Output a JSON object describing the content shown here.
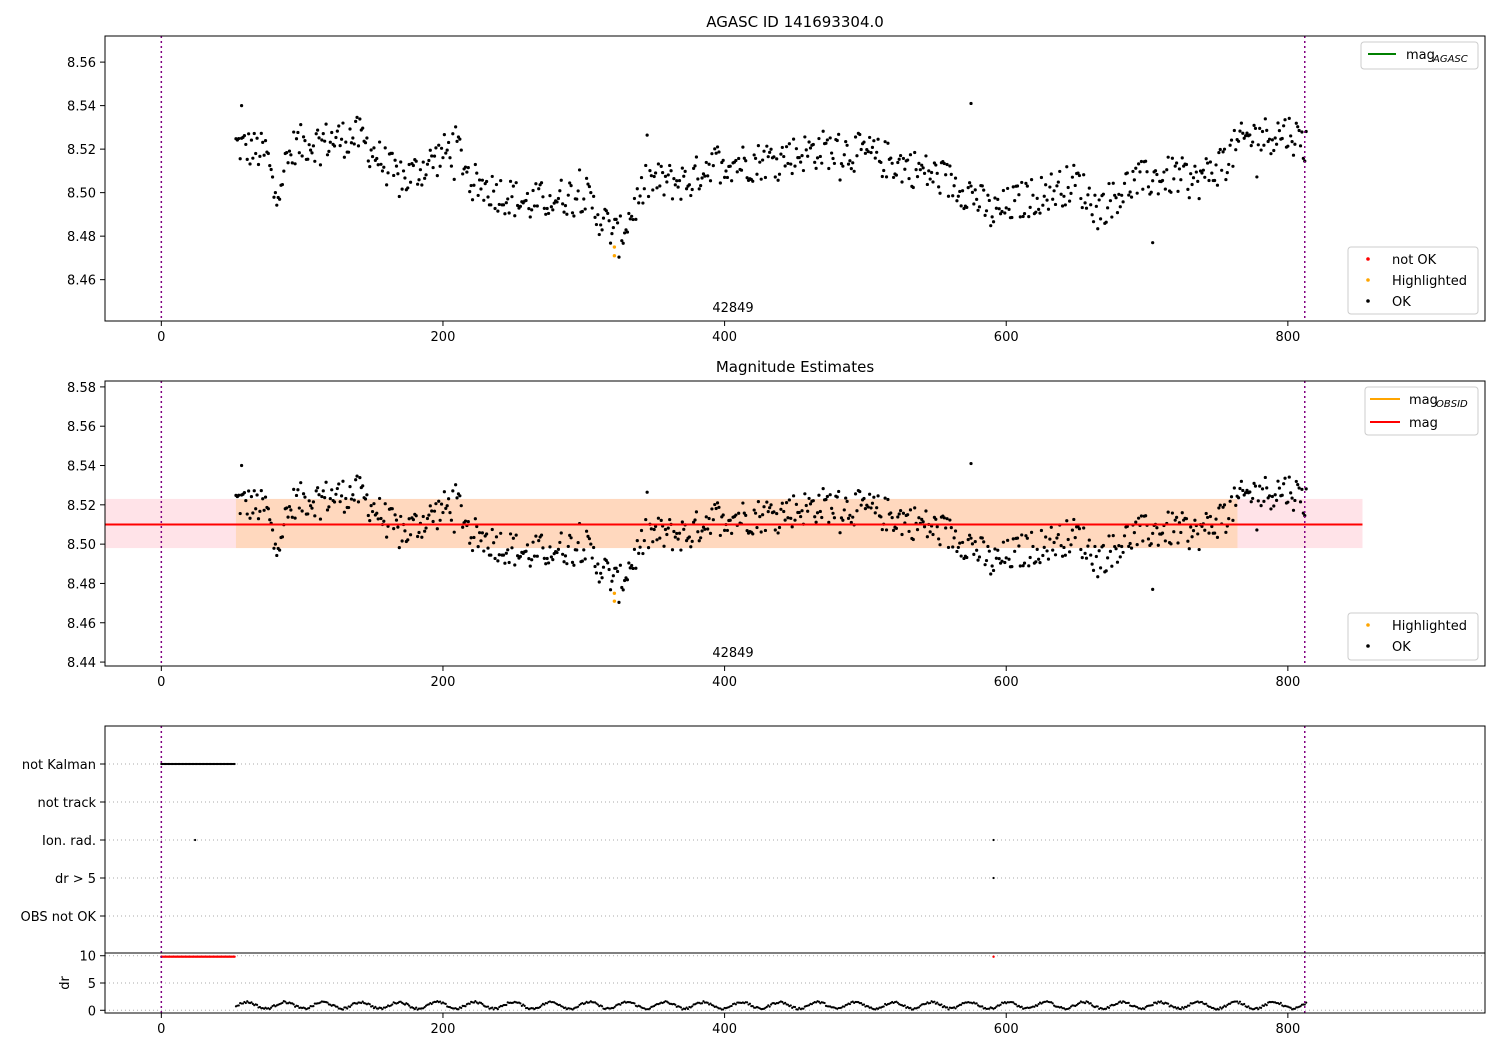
{
  "chart_data": [
    {
      "type": "scatter",
      "title": "AGASC ID 141693304.0",
      "xlabel": "",
      "ylabel": "",
      "xlim": [
        -40,
        940
      ],
      "ylim": [
        8.441,
        8.572
      ],
      "xticks": [
        0,
        200,
        400,
        600,
        800
      ],
      "yticks": [
        8.46,
        8.48,
        8.5,
        8.52,
        8.54,
        8.56
      ],
      "grid": false,
      "annotation": "42849",
      "vlines": [
        0,
        812
      ],
      "legend_top": {
        "placement": "top-right",
        "entries": [
          {
            "label": "mag",
            "sub": "AGASC",
            "color": "#008000"
          }
        ]
      },
      "legend_bottom": {
        "placement": "bottom-right",
        "entries": [
          {
            "label": "not OK",
            "color": "#ff0000"
          },
          {
            "label": "Highlighted",
            "color": "#ffa500"
          },
          {
            "label": "OK",
            "color": "#000000"
          }
        ]
      },
      "series": [
        {
          "name": "OK",
          "x_range": [
            53,
            813
          ],
          "count": 760,
          "baseline": 8.51,
          "color": "#000000"
        },
        {
          "name": "Highlighted",
          "x": [
            326,
            326
          ],
          "y": [
            8.471,
            8.475
          ],
          "color": "#ffa500"
        }
      ]
    },
    {
      "type": "scatter",
      "title": "Magnitude Estimates",
      "xlabel": "",
      "ylabel": "",
      "xlim": [
        -40,
        940
      ],
      "ylim": [
        8.438,
        8.583
      ],
      "xticks": [
        0,
        200,
        400,
        600,
        800
      ],
      "yticks": [
        8.44,
        8.46,
        8.48,
        8.5,
        8.52,
        8.54,
        8.56,
        8.58
      ],
      "grid": false,
      "annotation": "42849",
      "vlines": [
        0,
        812
      ],
      "mag": 8.51,
      "band": [
        8.498,
        8.523
      ],
      "band_x": [
        -40,
        853
      ],
      "legend_top": {
        "placement": "top-right",
        "entries": [
          {
            "label": "mag",
            "sub": "OBSID",
            "color": "#ffa500"
          },
          {
            "label": "mag",
            "sub": "",
            "color": "#ff0000"
          }
        ]
      },
      "legend_bottom": {
        "placement": "bottom-right",
        "entries": [
          {
            "label": "Highlighted",
            "color": "#ffa500"
          },
          {
            "label": "OK",
            "color": "#000000"
          }
        ]
      }
    },
    {
      "type": "scatter",
      "title": "",
      "xlim": [
        -40,
        940
      ],
      "xticks": [
        0,
        200,
        400,
        600,
        800
      ],
      "flag_labels": [
        "not Kalman",
        "not track",
        "Ion. rad.",
        "dr > 5",
        "OBS not OK"
      ],
      "flags": {
        "not Kalman": {
          "x_range": [
            0,
            52
          ]
        },
        "Ion. rad.": {
          "x": [
            24,
            591
          ]
        },
        "dr > 5": {
          "x": [
            591
          ]
        }
      },
      "ylabel": "dr",
      "dr_yticks": [
        0,
        5,
        10
      ],
      "dr_ylim": [
        -0.5,
        10.5
      ],
      "dr_clipped": {
        "x_range": [
          0,
          52
        ],
        "extra_x": [
          591
        ],
        "value": 10,
        "color": "#ff0000"
      },
      "dr_ok": {
        "x_range": [
          53,
          813
        ],
        "color": "#000000"
      },
      "vlines": [
        0,
        812
      ]
    }
  ]
}
